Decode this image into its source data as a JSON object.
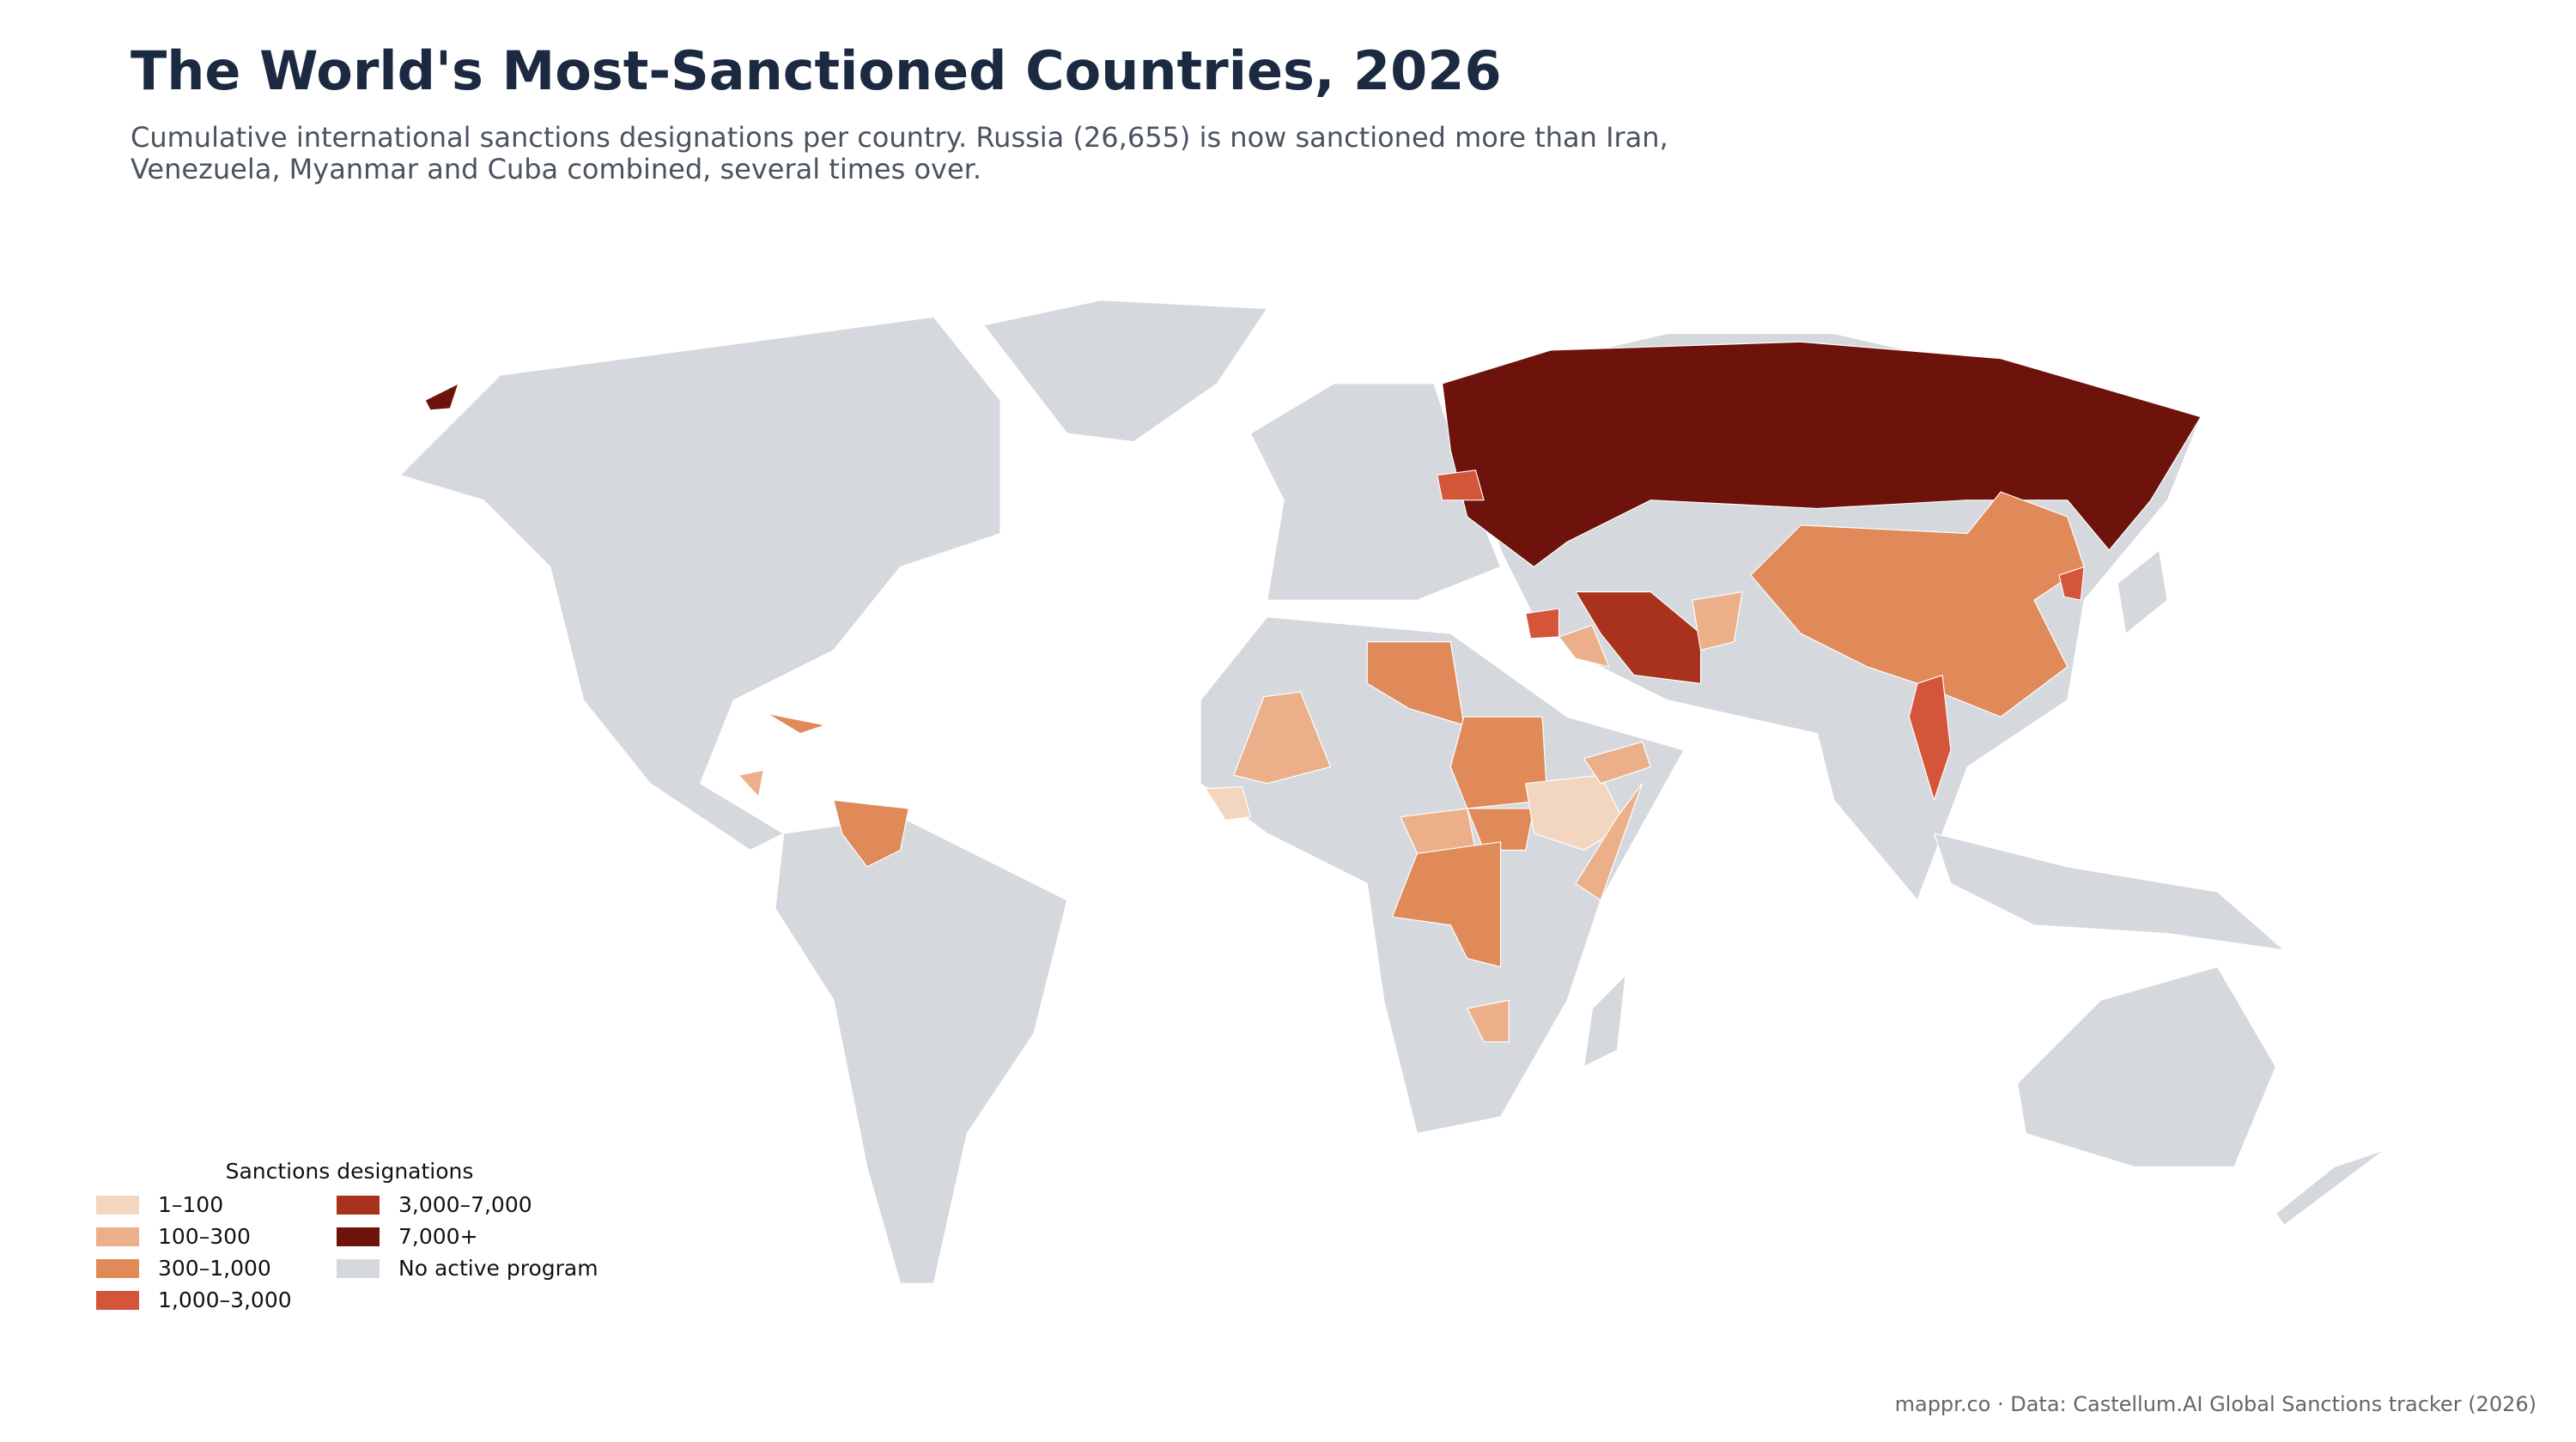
{
  "header": {
    "title": "The World's Most-Sanctioned Countries, 2026",
    "subtitle": "Cumulative international sanctions designations per country. Russia (26,655) is now sanctioned more than Iran, Venezuela, Myanmar and Cuba combined, several times over."
  },
  "legend": {
    "title": "Sanctions designations",
    "items": [
      {
        "label": "1–100",
        "color": "#f3d6c0"
      },
      {
        "label": "100–300",
        "color": "#ebb08a"
      },
      {
        "label": "300–1,000",
        "color": "#e08a5a"
      },
      {
        "label": "1,000–3,000",
        "color": "#d4553a"
      },
      {
        "label": "3,000–7,000",
        "color": "#a8321d"
      },
      {
        "label": "7,000+",
        "color": "#6e120c"
      },
      {
        "label": "No active program",
        "color": "#d5d9de"
      }
    ]
  },
  "footer": {
    "source": "mappr.co · Data: Castellum.AI Global Sanctions tracker (2026)"
  }
}
